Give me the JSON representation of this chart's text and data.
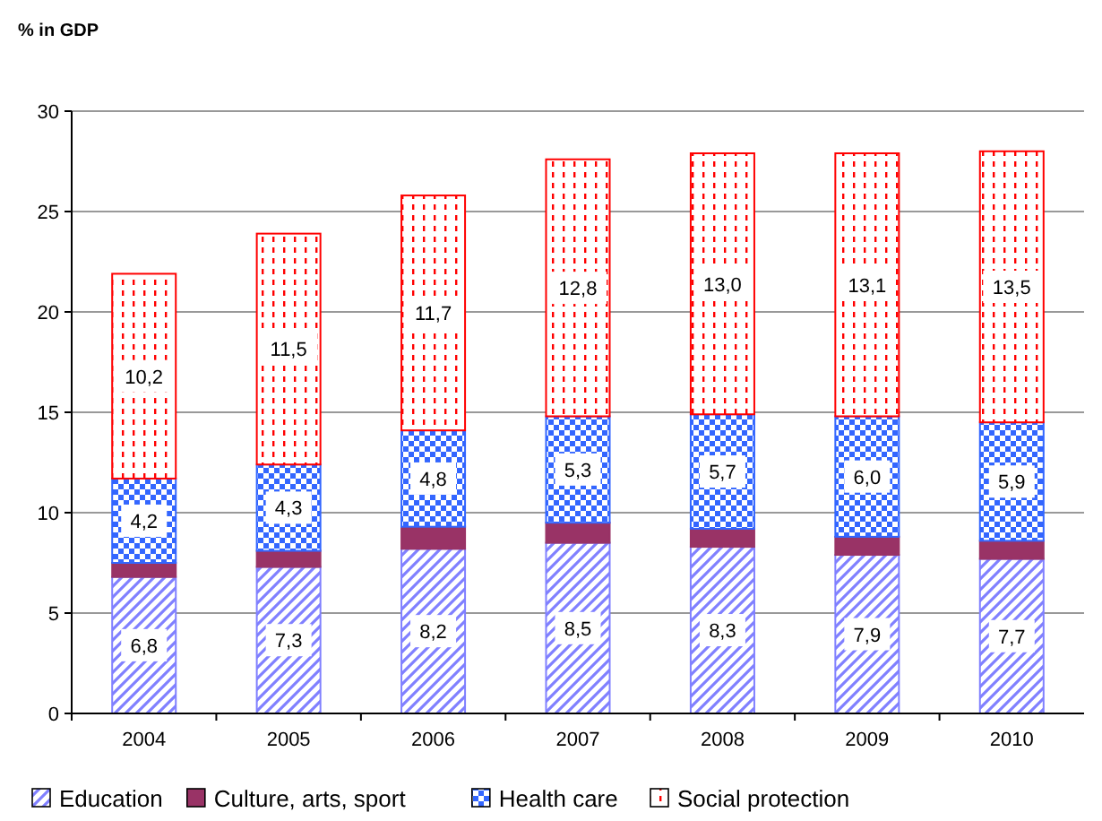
{
  "chart_data": {
    "type": "bar",
    "stacked": true,
    "ylabel": "% in GDP",
    "categories": [
      "2004",
      "2005",
      "2006",
      "2007",
      "2008",
      "2009",
      "2010"
    ],
    "series": [
      {
        "name": "Education",
        "color": "#8080ff",
        "values": [
          6.8,
          7.3,
          8.2,
          8.5,
          8.3,
          7.9,
          7.7
        ],
        "value_labels": [
          "6,8",
          "7,3",
          "8,2",
          "8,5",
          "8,3",
          "7,9",
          "7,7"
        ]
      },
      {
        "name": "Culture, arts, sport",
        "color": "#993366",
        "values": [
          0.7,
          0.8,
          1.1,
          1.0,
          0.9,
          0.9,
          0.9
        ]
      },
      {
        "name": "Health care",
        "color": "#3366ff",
        "values": [
          4.2,
          4.3,
          4.8,
          5.3,
          5.7,
          6.0,
          5.9
        ],
        "value_labels": [
          "4,2",
          "4,3",
          "4,8",
          "5,3",
          "5,7",
          "6,0",
          "5,9"
        ]
      },
      {
        "name": "Social protection",
        "color": "#ff0000",
        "values": [
          10.2,
          11.5,
          11.7,
          12.8,
          13.0,
          13.1,
          13.5
        ],
        "value_labels": [
          "10,2",
          "11,5",
          "11,7",
          "12,8",
          "13,0",
          "13,1",
          "13,5"
        ]
      }
    ],
    "ylim": [
      0,
      30
    ],
    "yticks": [
      0,
      5,
      10,
      15,
      20,
      25,
      30
    ],
    "grid": "y",
    "legend": "bottom"
  }
}
